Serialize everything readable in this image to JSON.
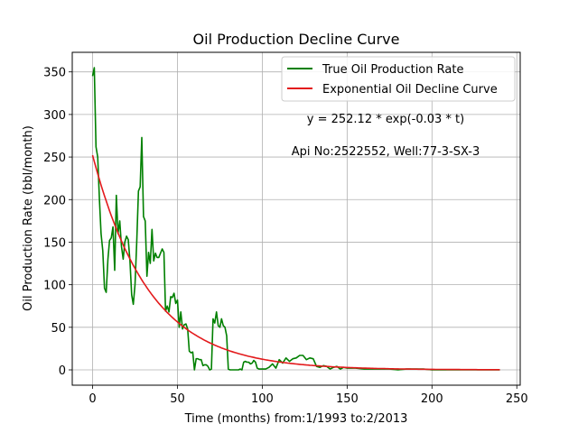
{
  "chart_data": {
    "type": "line",
    "title": "Oil Production Decline Curve",
    "xlabel": "Time (months) from:1/1993 to:2/2013",
    "ylabel": "Oil Production Rate (bbl/month)",
    "xlim": [
      -12,
      252
    ],
    "ylim": [
      -18,
      373
    ],
    "xticks": [
      0,
      50,
      100,
      150,
      200,
      250
    ],
    "yticks": [
      0,
      50,
      100,
      150,
      200,
      250,
      300,
      350
    ],
    "grid": true,
    "legend_position": "top-right",
    "annotations": [
      "y = 252.12 * exp(-0.03 * t)",
      "Api No:2522552, Well:77-3-SX-3"
    ],
    "series": [
      {
        "name": "True Oil Production Rate",
        "color": "#008000",
        "x": [
          0,
          1,
          2,
          3,
          4,
          5,
          6,
          7,
          8,
          9,
          10,
          11,
          12,
          13,
          14,
          15,
          16,
          17,
          18,
          19,
          20,
          21,
          22,
          23,
          24,
          25,
          26,
          27,
          28,
          29,
          30,
          31,
          32,
          33,
          34,
          35,
          36,
          37,
          38,
          39,
          40,
          41,
          42,
          43,
          44,
          45,
          46,
          47,
          48,
          49,
          50,
          51,
          52,
          53,
          54,
          55,
          56,
          57,
          58,
          59,
          60,
          61,
          62,
          63,
          64,
          65,
          66,
          67,
          68,
          69,
          70,
          71,
          72,
          73,
          74,
          75,
          76,
          77,
          78,
          79,
          80,
          81,
          82,
          83,
          84,
          85,
          86,
          87,
          88,
          89,
          90,
          91,
          92,
          93,
          94,
          95,
          96,
          97,
          98,
          99,
          100,
          102,
          104,
          106,
          108,
          110,
          112,
          114,
          116,
          118,
          120,
          122,
          124,
          126,
          128,
          130,
          132,
          134,
          136,
          138,
          140,
          142,
          144,
          146,
          148,
          150,
          155,
          160,
          165,
          170,
          175,
          180,
          185,
          190,
          195,
          200,
          205,
          210,
          215,
          220,
          225,
          230,
          235,
          240
        ],
        "y": [
          345,
          355,
          262,
          250,
          200,
          160,
          140,
          96,
          91,
          130,
          152,
          155,
          168,
          117,
          205,
          160,
          175,
          145,
          130,
          150,
          157,
          153,
          128,
          88,
          77,
          100,
          150,
          210,
          215,
          273,
          180,
          175,
          110,
          138,
          125,
          165,
          128,
          137,
          132,
          132,
          137,
          142,
          138,
          69,
          75,
          68,
          86,
          85,
          90,
          78,
          82,
          50,
          68,
          48,
          53,
          54,
          48,
          22,
          20,
          21,
          0,
          13,
          13,
          12,
          12,
          5,
          6,
          6,
          4,
          0,
          1,
          60,
          55,
          68,
          52,
          50,
          60,
          52,
          50,
          40,
          1,
          0,
          0,
          0,
          0,
          0,
          0,
          1,
          0,
          9,
          10,
          9,
          9,
          7,
          8,
          11,
          9,
          2,
          1,
          1,
          1,
          1,
          3,
          7,
          2,
          12,
          8,
          14,
          10,
          13,
          14,
          17,
          17,
          12,
          14,
          13,
          4,
          3,
          5,
          4,
          1,
          3,
          4,
          1,
          3,
          2,
          2,
          1,
          1,
          1,
          1,
          0,
          1,
          1,
          1,
          0,
          0,
          0,
          0,
          0,
          0,
          0,
          0,
          0
        ]
      },
      {
        "name": "Exponential Oil Decline Curve",
        "color": "#e31a1c",
        "fit": {
          "a": 252.12,
          "b": 0.03,
          "x_start": 0,
          "x_end": 240
        }
      }
    ]
  }
}
